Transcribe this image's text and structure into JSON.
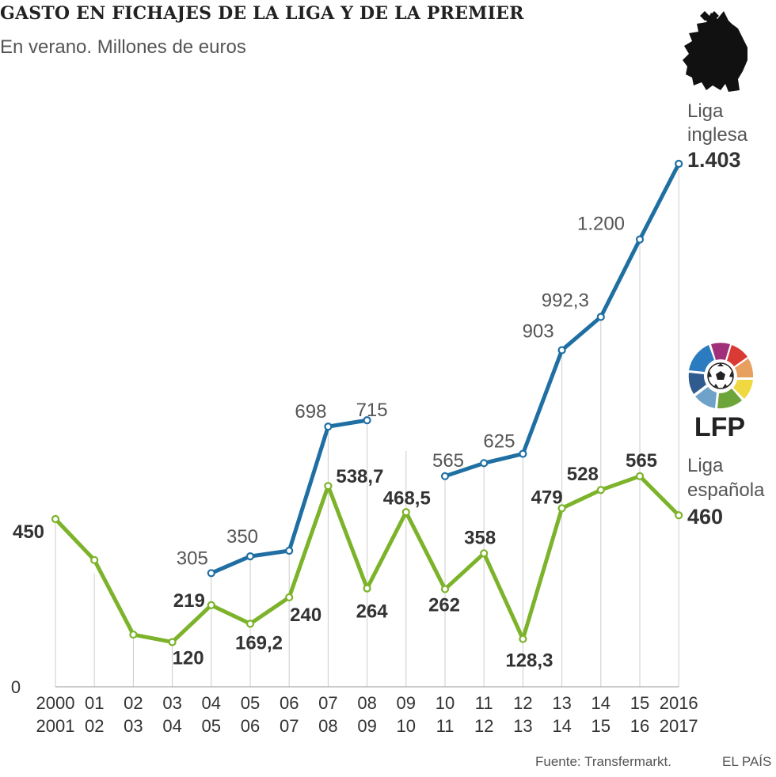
{
  "header": {
    "title": "GASTO EN FICHAJES DE LA LIGA Y DE LA PREMIER",
    "subtitle": "En verano. Millones de euros"
  },
  "footer": {
    "source": "Fuente: Transfermarkt.",
    "brand": "EL PAÍS"
  },
  "colors": {
    "premier": "#1f6fa3",
    "liga": "#7cb32a",
    "grid": "#cccccc",
    "label_light": "#555555",
    "label_dark": "#333333"
  },
  "logos": {
    "premier_icon": "premier-league-lion-icon",
    "lfp_icon": "lfp-ball-icon",
    "lfp_text": "LFP"
  },
  "chart_data": {
    "type": "line",
    "ylim": [
      0,
      1403
    ],
    "x_ticks": [
      [
        "2000",
        "2001"
      ],
      [
        "01",
        "02"
      ],
      [
        "02",
        "03"
      ],
      [
        "03",
        "04"
      ],
      [
        "04",
        "05"
      ],
      [
        "05",
        "06"
      ],
      [
        "06",
        "07"
      ],
      [
        "07",
        "08"
      ],
      [
        "08",
        "09"
      ],
      [
        "09",
        "10"
      ],
      [
        "10",
        "11"
      ],
      [
        "11",
        "12"
      ],
      [
        "12",
        "13"
      ],
      [
        "13",
        "14"
      ],
      [
        "14",
        "15"
      ],
      [
        "15",
        "16"
      ],
      [
        "2016",
        "2017"
      ]
    ],
    "y_ticks": [
      {
        "value": 0,
        "label": "0"
      }
    ],
    "series": [
      {
        "key": "premier",
        "name_lines": [
          "Liga",
          "inglesa"
        ],
        "end_label": "1.403",
        "values": [
          null,
          null,
          null,
          null,
          305,
          350,
          365,
          698,
          715,
          null,
          565,
          600,
          625,
          903,
          992.3,
          1200,
          1403
        ],
        "point_labels": [
          "",
          "",
          "",
          "",
          "305",
          "350",
          "",
          "698",
          "715",
          "",
          "565",
          "",
          "625",
          "903",
          "992,3",
          "1.200",
          ""
        ]
      },
      {
        "key": "liga",
        "name_lines": [
          "Liga",
          "española"
        ],
        "end_label": "460",
        "values": [
          450,
          340,
          140,
          120,
          219,
          169.2,
          240,
          538.7,
          264,
          468.5,
          262,
          358,
          128.3,
          479,
          528,
          565,
          460
        ],
        "point_labels": [
          "450",
          "",
          "",
          "120",
          "219",
          "169,2",
          "240",
          "538,7",
          "264",
          "468,5",
          "262",
          "358",
          "128,3",
          "479",
          "528",
          "565",
          ""
        ]
      }
    ]
  }
}
